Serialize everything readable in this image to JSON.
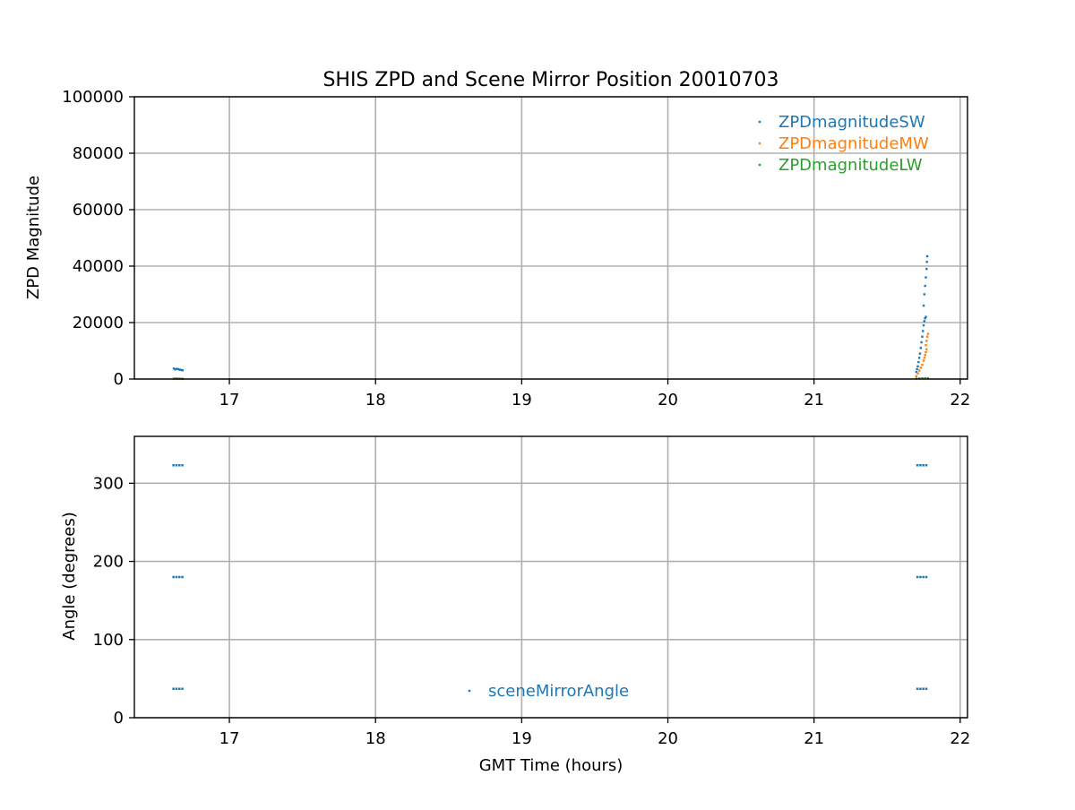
{
  "figure": {
    "title": "SHIS ZPD and Scene Mirror Position 20010703"
  },
  "chart_data": [
    {
      "type": "scatter",
      "title": "SHIS ZPD and Scene Mirror Position 20010703",
      "xlabel": "",
      "ylabel": "ZPD Magnitude",
      "xlim": [
        16.35,
        22.05
      ],
      "ylim": [
        0,
        100000
      ],
      "xticks": [
        17,
        18,
        19,
        20,
        21,
        22
      ],
      "xticklabels": [
        "17",
        "18",
        "19",
        "20",
        "21",
        "22"
      ],
      "yticks": [
        0,
        20000,
        40000,
        60000,
        80000,
        100000
      ],
      "yticklabels": [
        "0",
        "20000",
        "40000",
        "60000",
        "80000",
        "100000"
      ],
      "grid": true,
      "legend_position": "top-right",
      "series": [
        {
          "name": "ZPDmagnitudeSW",
          "color": "#1f77b4",
          "points": [
            [
              16.62,
              3700
            ],
            [
              16.63,
              3400
            ],
            [
              16.64,
              3600
            ],
            [
              16.65,
              3500
            ],
            [
              16.66,
              3300
            ],
            [
              16.67,
              3200
            ],
            [
              16.68,
              3100
            ],
            [
              21.7,
              2500
            ],
            [
              21.705,
              3500
            ],
            [
              21.71,
              4500
            ],
            [
              21.715,
              6000
            ],
            [
              21.72,
              7500
            ],
            [
              21.725,
              9000
            ],
            [
              21.73,
              11000
            ],
            [
              21.735,
              13000
            ],
            [
              21.74,
              15000
            ],
            [
              21.745,
              17000
            ],
            [
              21.75,
              19000
            ],
            [
              21.755,
              20500
            ],
            [
              21.76,
              21500
            ],
            [
              21.765,
              22000
            ],
            [
              21.75,
              26000
            ],
            [
              21.755,
              30000
            ],
            [
              21.76,
              33000
            ],
            [
              21.765,
              36000
            ],
            [
              21.77,
              39000
            ],
            [
              21.772,
              41500
            ],
            [
              21.775,
              43500
            ]
          ]
        },
        {
          "name": "ZPDmagnitudeMW",
          "color": "#ff7f0e",
          "points": [
            [
              16.63,
              200
            ],
            [
              16.65,
              150
            ],
            [
              16.67,
              120
            ],
            [
              21.7,
              1000
            ],
            [
              21.71,
              2000
            ],
            [
              21.72,
              3000
            ],
            [
              21.73,
              4000
            ],
            [
              21.74,
              5000
            ],
            [
              21.75,
              6500
            ],
            [
              21.755,
              7500
            ],
            [
              21.76,
              8500
            ],
            [
              21.765,
              9500
            ],
            [
              21.77,
              10500
            ],
            [
              21.765,
              12000
            ],
            [
              21.77,
              13500
            ],
            [
              21.775,
              15000
            ],
            [
              21.78,
              16000
            ]
          ]
        },
        {
          "name": "ZPDmagnitudeLW",
          "color": "#2ca02c",
          "points": [
            [
              16.62,
              100
            ],
            [
              16.64,
              80
            ],
            [
              16.66,
              90
            ],
            [
              16.68,
              70
            ],
            [
              21.7,
              150
            ],
            [
              21.72,
              200
            ],
            [
              21.74,
              250
            ],
            [
              21.76,
              300
            ],
            [
              21.78,
              250
            ]
          ]
        }
      ]
    },
    {
      "type": "scatter",
      "title": "",
      "xlabel": "GMT Time (hours)",
      "ylabel": "Angle (degrees)",
      "xlim": [
        16.35,
        22.05
      ],
      "ylim": [
        0,
        360
      ],
      "xticks": [
        17,
        18,
        19,
        20,
        21,
        22
      ],
      "xticklabels": [
        "17",
        "18",
        "19",
        "20",
        "21",
        "22"
      ],
      "yticks": [
        0,
        100,
        200,
        300
      ],
      "yticklabels": [
        "0",
        "100",
        "200",
        "300"
      ],
      "grid": true,
      "legend_position": "bottom-center",
      "series": [
        {
          "name": "sceneMirrorAngle",
          "color": "#1f77b4",
          "segments": [
            [
              16.61,
              16.69,
              323
            ],
            [
              16.61,
              16.69,
              180
            ],
            [
              16.61,
              16.69,
              37
            ],
            [
              21.7,
              21.78,
              323
            ],
            [
              21.7,
              21.78,
              180
            ],
            [
              21.7,
              21.78,
              37
            ]
          ]
        }
      ]
    }
  ]
}
